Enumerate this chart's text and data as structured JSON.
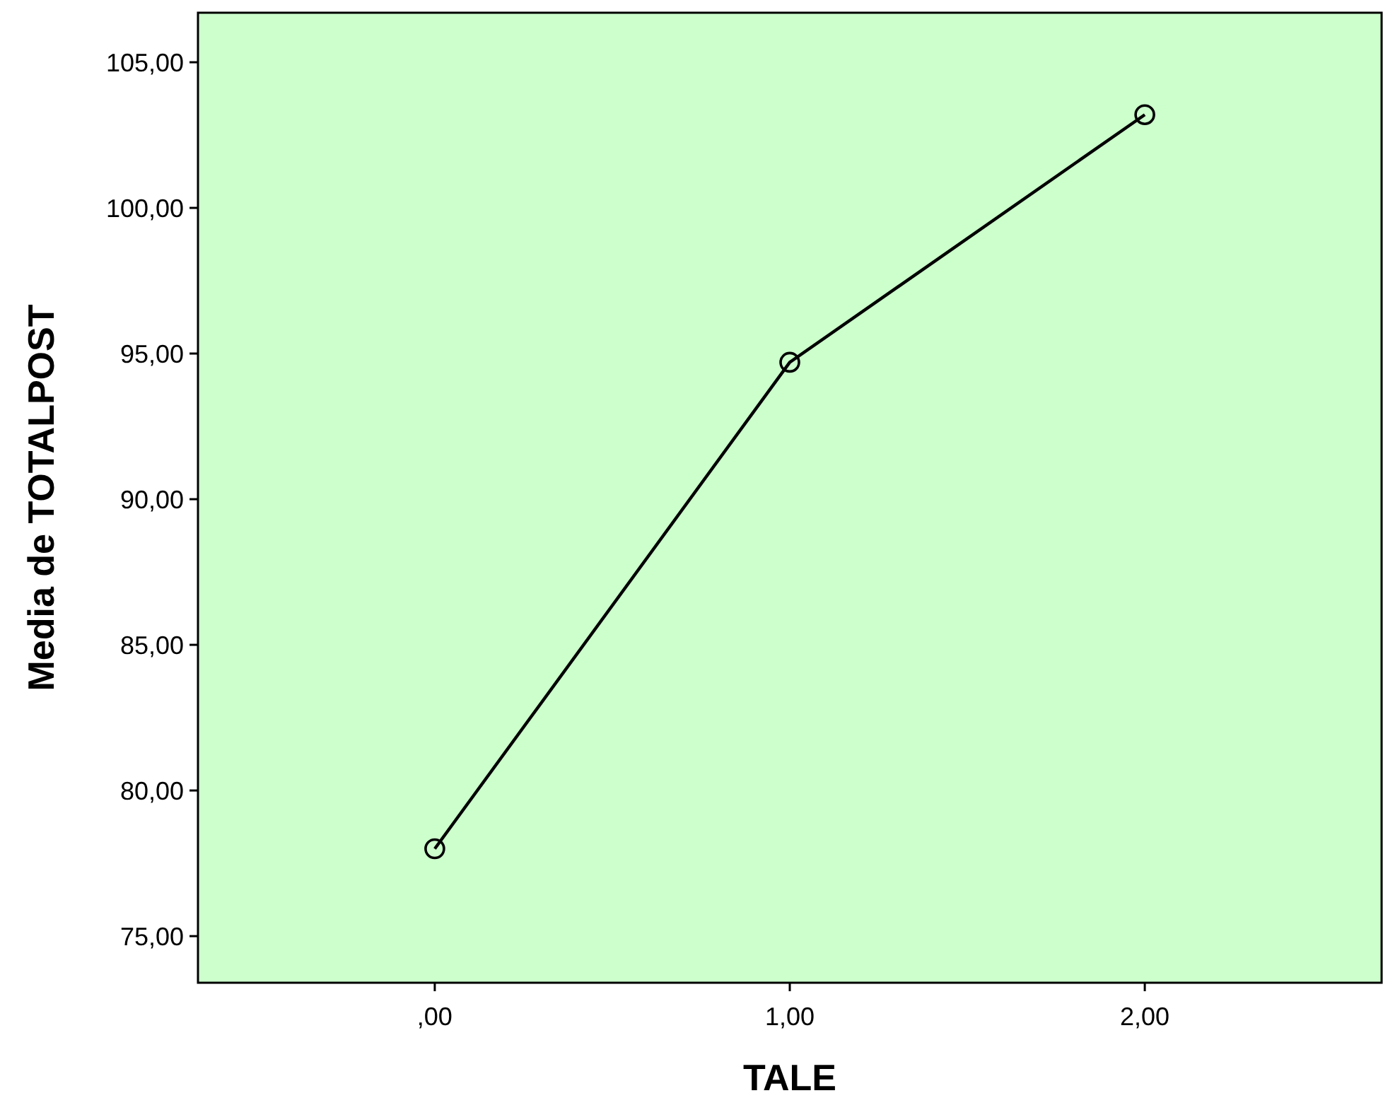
{
  "chart_data": {
    "type": "line",
    "xlabel": "TALE",
    "ylabel": "Media de TOTALPOST",
    "categories": [
      ",00",
      "1,00",
      "2,00"
    ],
    "series": [
      {
        "color": "#000000",
        "values": [
          78.0,
          94.7,
          103.2
        ]
      }
    ],
    "ylim": [
      73.4,
      106.7
    ],
    "yticks": [
      {
        "value": 75,
        "label": "75,00"
      },
      {
        "value": 80,
        "label": "80,00"
      },
      {
        "value": 85,
        "label": "85,00"
      },
      {
        "value": 90,
        "label": "90,00"
      },
      {
        "value": 95,
        "label": "95,00"
      },
      {
        "value": 100,
        "label": "100,00"
      },
      {
        "value": 105,
        "label": "105,00"
      }
    ],
    "marker": "circle",
    "line_style": "solid",
    "grid": false
  }
}
